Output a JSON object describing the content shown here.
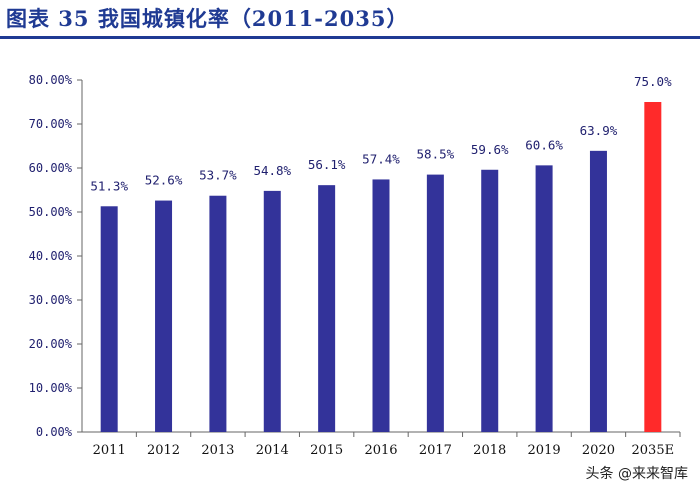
{
  "header": {
    "title": "图表 35 我国城镇化率（2011-2035）"
  },
  "watermark": {
    "text": "头条 @来来智库"
  },
  "colors": {
    "bar": "#33339a",
    "forecast_bar": "#ff2a2a",
    "axis": "#666666",
    "label": "#1f1f6e"
  },
  "chart_data": {
    "type": "bar",
    "title": "我国城镇化率（2011-2035）",
    "xlabel": "",
    "ylabel": "",
    "categories": [
      "2011",
      "2012",
      "2013",
      "2014",
      "2015",
      "2016",
      "2017",
      "2018",
      "2019",
      "2020",
      "2035E"
    ],
    "values": [
      51.3,
      52.6,
      53.7,
      54.8,
      56.1,
      57.4,
      58.5,
      59.6,
      60.6,
      63.9,
      75.0
    ],
    "data_labels": [
      "51.3%",
      "52.6%",
      "53.7%",
      "54.8%",
      "56.1%",
      "57.4%",
      "58.5%",
      "59.6%",
      "60.6%",
      "63.9%",
      "75.0%"
    ],
    "forecast_index": 10,
    "ylim": [
      0,
      80
    ],
    "yticks": [
      0,
      10,
      20,
      30,
      40,
      50,
      60,
      70,
      80
    ],
    "ytick_labels": [
      "0.00%",
      "10.00%",
      "20.00%",
      "30.00%",
      "40.00%",
      "50.00%",
      "60.00%",
      "70.00%",
      "80.00%"
    ],
    "grid": false,
    "legend": "none"
  }
}
